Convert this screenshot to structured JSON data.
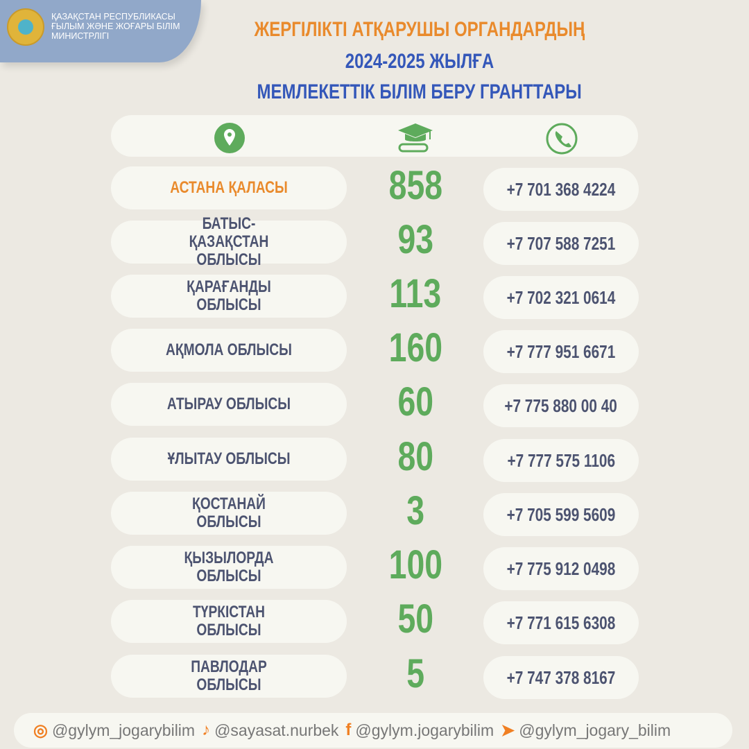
{
  "header": {
    "ministry_lines": [
      "ҚАЗАҚСТАН РЕСПУБЛИКАСЫ",
      "ҒЫЛЫМ ЖӘНЕ ЖОҒАРЫ БІЛІМ",
      "МИНИСТРЛІГІ"
    ]
  },
  "title": {
    "line1": "ЖЕРГІЛІКТІ АТҚАРУШЫ ОРГАНДАРДЫҢ",
    "line2": "2024-2025 ЖЫЛҒА",
    "line3": "МЕМЛЕКЕТТІК БІЛІМ БЕРУ ГРАНТТАРЫ"
  },
  "colors": {
    "orange": "#e98a2c",
    "blue": "#3457b9",
    "green": "#5eab5c",
    "text": "#4c5370"
  },
  "column_icons": [
    "location-pin-icon",
    "graduation-cap-icon",
    "phone-icon"
  ],
  "rows": [
    {
      "region": "АСТАНА ҚАЛАСЫ",
      "grants": "858",
      "phone": "+7 701 368 4224",
      "highlight": true
    },
    {
      "region": "БАТЫС-ҚАЗАҚСТАН ОБЛЫСЫ",
      "grants": "93",
      "phone": "+7 707 588 7251"
    },
    {
      "region": "ҚАРАҒАНДЫ ОБЛЫСЫ",
      "grants": "113",
      "phone": "+7 702 321 0614"
    },
    {
      "region": "АҚМОЛА ОБЛЫСЫ",
      "grants": "160",
      "phone": "+7 777 951 6671"
    },
    {
      "region": "АТЫРАУ ОБЛЫСЫ",
      "grants": "60",
      "phone": "+7 775 880 00 40"
    },
    {
      "region": "ҰЛЫТАУ ОБЛЫСЫ",
      "grants": "80",
      "phone": "+7 777 575 1106"
    },
    {
      "region": "ҚОСТАНАЙ ОБЛЫСЫ",
      "grants": "3",
      "phone": "+7 705 599 5609"
    },
    {
      "region": "ҚЫЗЫЛОРДА ОБЛЫСЫ",
      "grants": "100",
      "phone": "+7 775 912 0498"
    },
    {
      "region": "ТҮРКІСТАН ОБЛЫСЫ",
      "grants": "50",
      "phone": "+7 771 615 6308"
    },
    {
      "region": "ПАВЛОДАР ОБЛЫСЫ",
      "grants": "5",
      "phone": "+7 747 378 8167"
    }
  ],
  "footer": [
    {
      "icon": "instagram-icon",
      "handle": "@gylym_jogarybilim"
    },
    {
      "icon": "tiktok-icon",
      "handle": "@sayasat.nurbek"
    },
    {
      "icon": "facebook-icon",
      "handle": "@gylym.jogarybilim"
    },
    {
      "icon": "telegram-icon",
      "handle": "@gylym_jogary_bilim"
    }
  ]
}
